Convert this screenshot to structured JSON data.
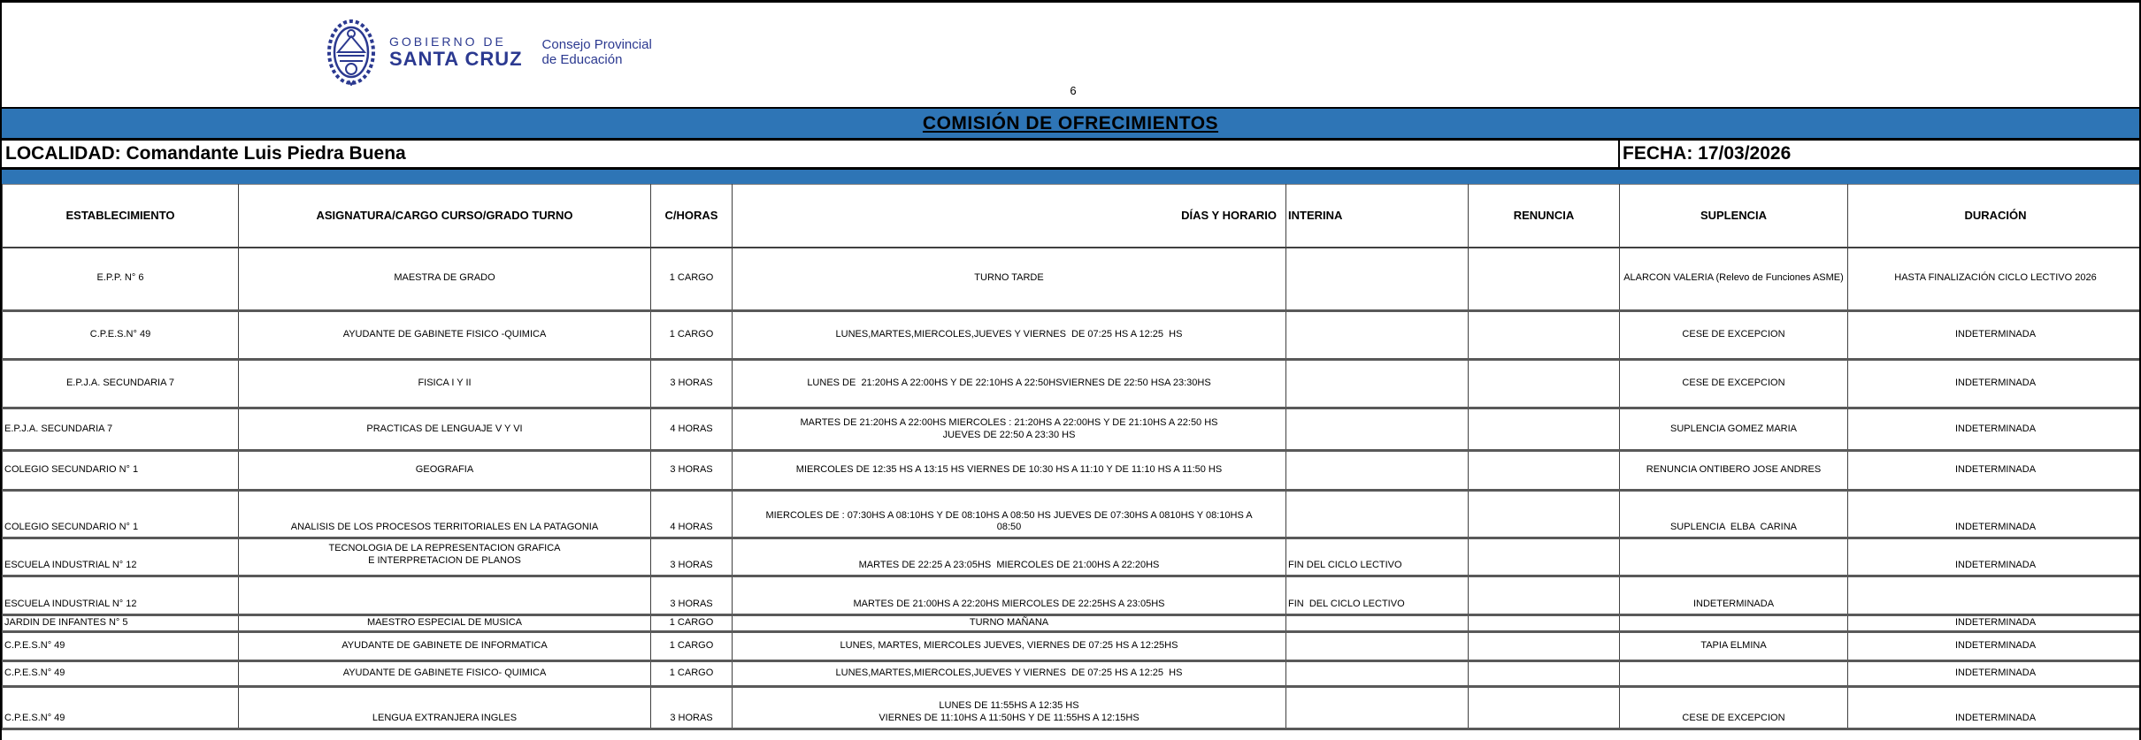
{
  "header": {
    "crest_icon": "santa-cruz-coat-of-arms",
    "gov_line1": "GOBIERNO DE",
    "gov_line2": "SANTA CRUZ",
    "org_line1": "Consejo Provincial",
    "org_line2": "de Educación",
    "page_number": "6"
  },
  "title": "COMISIÓN DE OFRECIMIENTOS",
  "meta": {
    "localidad": "LOCALIDAD: Comandante Luis Piedra Buena",
    "fecha": "FECHA: 17/03/2026"
  },
  "colors": {
    "accent_blue": "#2E75B6",
    "logo_navy": "#2B3990"
  },
  "table": {
    "columns": [
      "ESTABLECIMIENTO",
      "ASIGNATURA/CARGO  CURSO/GRADO  TURNO",
      "C/HORAS",
      "DÍAS Y HORARIO",
      "INTERINA",
      "RENUNCIA",
      "SUPLENCIA",
      "DURACIÓN"
    ],
    "rows": [
      {
        "establecimiento": "E.P.P. N° 6",
        "asignatura": "MAESTRA DE GRADO",
        "horas": "1 CARGO",
        "dias": "TURNO TARDE",
        "interina": "",
        "renuncia": "",
        "suplencia": "ALARCON VALERIA (Relevo de Funciones ASME)",
        "duracion": "HASTA FINALIZACIÓN CICLO LECTIVO 2026"
      },
      {
        "establecimiento": "C.P.E.S.N° 49",
        "asignatura": "AYUDANTE DE GABINETE FISICO -QUIMICA",
        "horas": "1 CARGO",
        "dias": "LUNES,MARTES,MIERCOLES,JUEVES Y VIERNES  DE 07:25 HS A 12:25  HS",
        "interina": "",
        "renuncia": "",
        "suplencia": "CESE DE EXCEPCION",
        "duracion": "INDETERMINADA"
      },
      {
        "establecimiento": "E.P.J.A. SECUNDARIA 7",
        "asignatura": "FISICA I Y II",
        "horas": "3 HORAS",
        "dias": "LUNES DE  21:20HS A 22:00HS Y DE 22:10HS A 22:50HSVIERNES DE 22:50 HSA 23:30HS",
        "interina": "",
        "renuncia": "",
        "suplencia": "CESE DE EXCEPCION",
        "duracion": "INDETERMINADA"
      },
      {
        "establecimiento": "E.P.J.A. SECUNDARIA 7",
        "asignatura": "PRACTICAS DE LENGUAJE V Y VI",
        "horas": "4 HORAS",
        "dias": "MARTES DE 21:20HS A 22:00HS MIERCOLES : 21:20HS A 22:00HS Y DE 21:10HS A 22:50 HS\nJUEVES DE 22:50 A 23:30 HS",
        "interina": "",
        "renuncia": "",
        "suplencia": "SUPLENCIA GOMEZ MARIA",
        "duracion": "INDETERMINADA"
      },
      {
        "establecimiento": "COLEGIO SECUNDARIO N° 1",
        "asignatura": "GEOGRAFIA",
        "horas": "3 HORAS",
        "dias": "MIERCOLES DE 12:35 HS A 13:15 HS VIERNES DE 10:30 HS A 11:10 Y DE 11:10 HS A 11:50 HS",
        "interina": "",
        "renuncia": "",
        "suplencia": "RENUNCIA ONTIBERO JOSE ANDRES",
        "duracion": "INDETERMINADA"
      },
      {
        "establecimiento": "COLEGIO SECUNDARIO N° 1",
        "asignatura": "ANALISIS DE LOS PROCESOS TERRITORIALES EN LA PATAGONIA",
        "horas": "4 HORAS",
        "dias": "MIERCOLES DE : 07:30HS A 08:10HS Y DE 08:10HS A 08:50 HS JUEVES DE 07:30HS A 0810HS Y 08:10HS A\n08:50",
        "interina": "",
        "renuncia": "",
        "suplencia": "SUPLENCIA  ELBA  CARINA",
        "duracion": "INDETERMINADA"
      },
      {
        "establecimiento": "ESCUELA INDUSTRIAL N° 12",
        "asignatura": "TECNOLOGIA DE LA REPRESENTACION GRAFICA\nE INTERPRETACION DE PLANOS",
        "horas": "3 HORAS",
        "dias": "MARTES DE 22:25 A 23:05HS  MIERCOLES DE 21:00HS A 22:20HS",
        "interina": "FIN DEL CICLO LECTIVO",
        "renuncia": "",
        "suplencia": "",
        "duracion": "INDETERMINADA"
      },
      {
        "establecimiento": "ESCUELA INDUSTRIAL N° 12",
        "asignatura": "",
        "horas": "3 HORAS",
        "dias": "MARTES DE 21:00HS A 22:20HS MIERCOLES DE 22:25HS A 23:05HS",
        "interina": "FIN  DEL CICLO LECTIVO",
        "renuncia": "",
        "suplencia": "INDETERMINADA",
        "duracion": ""
      },
      {
        "establecimiento": "JARDIN DE INFANTES N° 5",
        "asignatura": "MAESTRO ESPECIAL DE MUSICA",
        "horas": "1 CARGO",
        "dias": "TURNO MAÑANA",
        "interina": "",
        "renuncia": "",
        "suplencia": "",
        "duracion": "INDETERMINADA"
      },
      {
        "establecimiento": "C.P.E.S.N° 49",
        "asignatura": "AYUDANTE DE GABINETE DE INFORMATICA",
        "horas": "1 CARGO",
        "dias": "LUNES, MARTES, MIERCOLES JUEVES, VIERNES DE 07:25 HS A 12:25HS",
        "interina": "",
        "renuncia": "",
        "suplencia": "TAPIA ELMINA",
        "duracion": "INDETERMINADA"
      },
      {
        "establecimiento": "C.P.E.S.N° 49",
        "asignatura": "AYUDANTE DE GABINETE FISICO- QUIMICA",
        "horas": "1 CARGO",
        "dias": "LUNES,MARTES,MIERCOLES,JUEVES Y VIERNES  DE 07:25 HS A 12:25  HS",
        "interina": "",
        "renuncia": "",
        "suplencia": "",
        "duracion": "INDETERMINADA"
      },
      {
        "establecimiento": "C.P.E.S.N° 49",
        "asignatura": "LENGUA EXTRANJERA INGLES",
        "horas": "3 HORAS",
        "dias": "LUNES DE 11:55HS A 12:35 HS\nVIERNES DE 11:10HS A 11:50HS Y DE 11:55HS A 12:15HS",
        "interina": "",
        "renuncia": "",
        "suplencia": "CESE DE EXCEPCION",
        "duracion": "INDETERMINADA"
      }
    ]
  }
}
